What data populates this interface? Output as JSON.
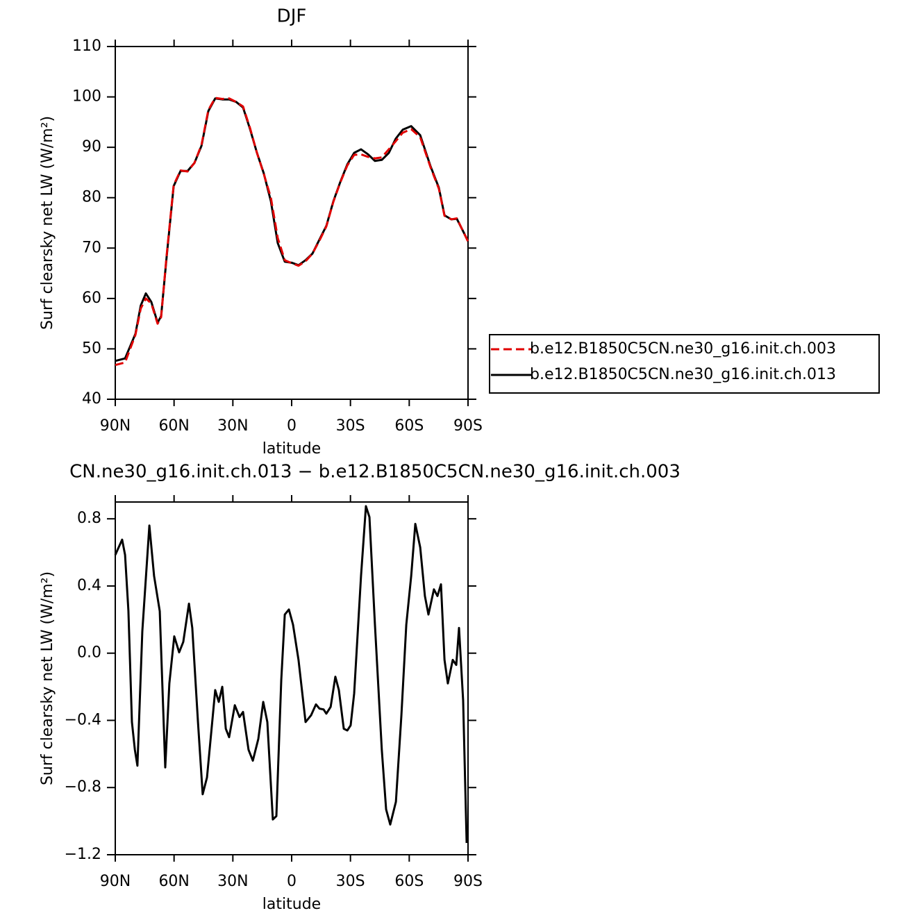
{
  "chart_data": [
    {
      "type": "line",
      "title": "DJF",
      "xlabel": "latitude",
      "ylabel": "Surf clearsky net LW (W/m²)",
      "xlim": [
        90,
        -90
      ],
      "xticks": [
        {
          "value": 90,
          "label": "90N"
        },
        {
          "value": 60,
          "label": "60N"
        },
        {
          "value": 30,
          "label": "30N"
        },
        0,
        {
          "value": -30,
          "label": "30S"
        },
        {
          "value": -60,
          "label": "60S"
        },
        {
          "value": -90,
          "label": "90S"
        }
      ],
      "ylim": [
        40,
        110
      ],
      "yticks": [
        40,
        50,
        60,
        70,
        80,
        90,
        100,
        110
      ],
      "legend": "right",
      "x": [
        90,
        85,
        79.7,
        77,
        74.4,
        71.6,
        68.4,
        66.6,
        63.8,
        60.2,
        56.7,
        53.1,
        49.6,
        46,
        42.5,
        39,
        35.4,
        31.9,
        28.3,
        24.8,
        21.3,
        17.7,
        14.2,
        10.6,
        7.1,
        3.5,
        0,
        -3.5,
        -7.1,
        -10.6,
        -14.2,
        -17.7,
        -21.3,
        -24.8,
        -28.4,
        -31.9,
        -35.4,
        -39,
        -42.5,
        -46,
        -49.6,
        -53.1,
        -56.7,
        -61,
        -65.6,
        -70.9,
        -75.1,
        -78,
        -81.5,
        -84.3,
        -90
      ],
      "series": [
        {
          "name": "b.e12.B1850C5CN.ne30_g16.init.ch.003",
          "color": "#e00000",
          "dashed": true,
          "values": [
            46.8,
            47.3,
            52.8,
            58,
            60,
            59,
            55,
            56.3,
            68.5,
            82.5,
            85.4,
            85.2,
            86.9,
            90.5,
            97.4,
            99.8,
            99.6,
            99.7,
            99,
            98.1,
            93.9,
            88.9,
            84.7,
            80,
            72,
            67.6,
            67,
            66.5,
            67.4,
            68.9,
            71.5,
            74.3,
            79.2,
            83,
            86.4,
            88.5,
            88.6,
            88.1,
            87.8,
            88,
            89.6,
            91.2,
            92.9,
            93.6,
            92,
            86,
            81.8,
            76.4,
            75.7,
            75.9,
            71.3
          ]
        },
        {
          "name": "b.e12.B1850C5CN.ne30_g16.init.ch.013",
          "color": "#000000",
          "dashed": false,
          "values": [
            47.6,
            48.1,
            53,
            58.6,
            61,
            59.3,
            55.2,
            56.5,
            68.2,
            82.3,
            85.3,
            85.3,
            86.9,
            90.3,
            97.2,
            99.7,
            99.5,
            99.5,
            99,
            97.9,
            93.7,
            88.9,
            84.8,
            79.3,
            71,
            67.3,
            67.1,
            66.6,
            67.6,
            68.9,
            71.7,
            74.4,
            79.3,
            83.1,
            86.6,
            88.9,
            89.6,
            88.6,
            87.3,
            87.5,
            88.9,
            91.7,
            93.5,
            94.2,
            92.4,
            86.2,
            82,
            76.5,
            75.7,
            75.8,
            71.4
          ]
        }
      ]
    },
    {
      "type": "line",
      "title": "CN.ne30_g16.init.ch.013 − b.e12.B1850C5CN.ne30_g16.init.ch.003",
      "xlabel": "latitude",
      "ylabel": "Surf clearsky net LW (W/m²)",
      "xlim": [
        90,
        -90
      ],
      "xticks": [
        {
          "value": 90,
          "label": "90N"
        },
        {
          "value": 60,
          "label": "60N"
        },
        {
          "value": 30,
          "label": "30N"
        },
        0,
        {
          "value": -30,
          "label": "30S"
        },
        {
          "value": -60,
          "label": "60S"
        },
        {
          "value": -90,
          "label": "90S"
        }
      ],
      "ylim": [
        -1.2,
        0.9
      ],
      "yticks": [
        {
          "value": -1.2,
          "label": "−1.2"
        },
        {
          "value": -0.8,
          "label": "−0.8"
        },
        {
          "value": -0.4,
          "label": "−0.4"
        },
        {
          "value": 0,
          "label": "0.0"
        },
        0.4,
        0.8
      ],
      "color": "#000000",
      "x": [
        90,
        86.5,
        85,
        83.3,
        81.5,
        80,
        78.7,
        76.2,
        72.6,
        70.2,
        67.3,
        64.5,
        62.4,
        59.9,
        57.4,
        55.3,
        52.4,
        50.7,
        47.8,
        45.4,
        43.2,
        39,
        37.2,
        35.4,
        33.6,
        31.9,
        29,
        26.6,
        24.8,
        22,
        19.8,
        17,
        14.5,
        12.4,
        9.6,
        7.8,
        5.3,
        3.5,
        1.4,
        -0.7,
        -3.5,
        -7.1,
        -9.9,
        -12.4,
        -14.2,
        -16.3,
        -17.7,
        -19.9,
        -22.3,
        -24.1,
        -26.6,
        -28.4,
        -30.1,
        -31.9,
        -35.4,
        -37.9,
        -39.7,
        -42.5,
        -46,
        -48.2,
        -50.3,
        -53.2,
        -56,
        -58.5,
        -61,
        -63.1,
        -65.6,
        -68,
        -69.8,
        -72.6,
        -74.4,
        -76.2,
        -78,
        -79.7,
        -82.2,
        -84,
        -85.4,
        -87.5,
        -89.3
      ],
      "values": [
        0.585,
        0.676,
        0.585,
        0.253,
        -0.41,
        -0.575,
        -0.67,
        0.13,
        0.76,
        0.46,
        0.25,
        -0.68,
        -0.18,
        0.1,
        0.005,
        0.067,
        0.295,
        0.15,
        -0.41,
        -0.84,
        -0.74,
        -0.22,
        -0.29,
        -0.2,
        -0.45,
        -0.5,
        -0.31,
        -0.38,
        -0.35,
        -0.575,
        -0.64,
        -0.51,
        -0.29,
        -0.41,
        -0.99,
        -0.97,
        -0.16,
        0.23,
        0.26,
        0.17,
        -0.04,
        -0.41,
        -0.37,
        -0.305,
        -0.33,
        -0.335,
        -0.36,
        -0.32,
        -0.14,
        -0.22,
        -0.45,
        -0.46,
        -0.43,
        -0.24,
        0.46,
        0.875,
        0.81,
        0.17,
        -0.575,
        -0.93,
        -1.02,
        -0.885,
        -0.37,
        0.17,
        0.46,
        0.77,
        0.63,
        0.34,
        0.23,
        0.38,
        0.34,
        0.41,
        -0.04,
        -0.18,
        -0.04,
        -0.07,
        0.15,
        -0.28,
        -1.13
      ]
    }
  ]
}
